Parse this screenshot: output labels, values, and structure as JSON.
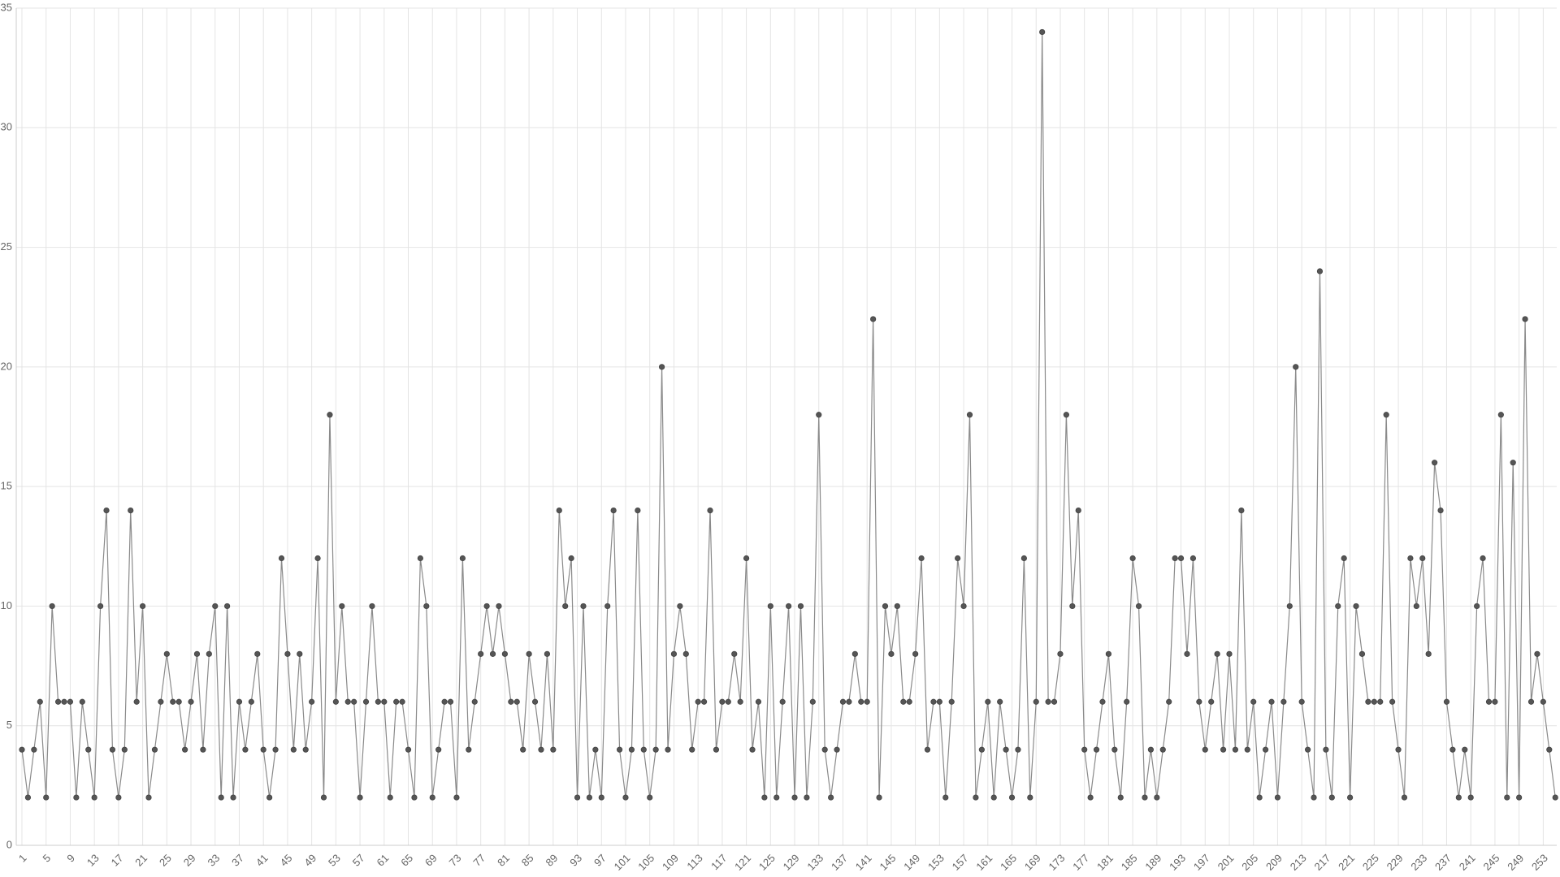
{
  "chart_data": {
    "type": "line",
    "categories": [
      "1",
      null,
      null,
      null,
      "5",
      null,
      null,
      null,
      "9",
      null,
      null,
      null,
      "13",
      null,
      null,
      null,
      "17",
      null,
      null,
      null,
      "21",
      null,
      null,
      null,
      "25",
      null,
      null,
      null,
      "29",
      null,
      null,
      null,
      "33",
      null,
      null,
      null,
      "37",
      null,
      null,
      null,
      "41",
      null,
      null,
      null,
      "45",
      null,
      null,
      null,
      "49",
      null,
      null,
      null,
      "53",
      null,
      null,
      null,
      "57",
      null,
      null,
      null,
      "61",
      null,
      null,
      null,
      "65",
      null,
      null,
      null,
      "69",
      null,
      null,
      null,
      "73",
      null,
      null,
      null,
      "77",
      null,
      null,
      null,
      "81",
      null,
      null,
      null,
      "85",
      null,
      null,
      null,
      "89",
      null,
      null,
      null,
      "93",
      null,
      null,
      null,
      "97",
      null,
      null,
      null,
      "101",
      null,
      null,
      null,
      "105",
      null,
      null,
      null,
      "109",
      null,
      null,
      null,
      "113",
      null,
      null,
      null,
      "117",
      null,
      null,
      null,
      "121",
      null,
      null,
      null,
      "125",
      null,
      null,
      null,
      "129",
      null,
      null,
      null,
      "133",
      null,
      null,
      null,
      "137",
      null,
      null,
      null,
      "141",
      null,
      null,
      null,
      "145",
      null,
      null,
      null,
      "149",
      null,
      null,
      null,
      "153",
      null,
      null,
      null,
      "157",
      null,
      null,
      null,
      "161",
      null,
      null,
      null,
      "165",
      null,
      null,
      null,
      "169",
      null,
      null,
      null,
      "173",
      null,
      null,
      null,
      "177",
      null,
      null,
      null,
      "181",
      null,
      null,
      null,
      "185",
      null,
      null,
      null,
      "189",
      null,
      null,
      null,
      "193",
      null,
      null,
      null,
      "197",
      null,
      null,
      null,
      "201",
      null,
      null,
      null,
      "205",
      null,
      null,
      null,
      "209",
      null,
      null,
      null,
      "213",
      null,
      null,
      null,
      "217",
      null,
      null,
      null,
      "221",
      null,
      null,
      null,
      "225",
      null,
      null,
      null,
      "229",
      null,
      null,
      null,
      "233",
      null,
      null,
      null,
      "237",
      null,
      null,
      null,
      "241",
      null,
      null,
      null,
      "245",
      null,
      null,
      null,
      "249",
      null,
      null,
      null,
      "253",
      null,
      null
    ],
    "values": [
      4,
      2,
      4,
      6,
      2,
      10,
      6,
      6,
      6,
      2,
      6,
      4,
      2,
      10,
      14,
      4,
      2,
      4,
      14,
      6,
      10,
      2,
      4,
      6,
      8,
      6,
      6,
      4,
      6,
      8,
      4,
      8,
      10,
      2,
      10,
      2,
      6,
      4,
      6,
      8,
      4,
      2,
      4,
      12,
      8,
      4,
      8,
      4,
      6,
      12,
      2,
      18,
      6,
      10,
      6,
      6,
      2,
      6,
      10,
      6,
      6,
      2,
      6,
      6,
      4,
      2,
      12,
      10,
      2,
      4,
      6,
      6,
      2,
      12,
      4,
      6,
      8,
      10,
      8,
      10,
      8,
      6,
      6,
      4,
      8,
      6,
      4,
      8,
      4,
      14,
      10,
      12,
      2,
      10,
      2,
      4,
      2,
      10,
      14,
      4,
      2,
      4,
      14,
      4,
      2,
      4,
      20,
      4,
      8,
      10,
      8,
      4,
      6,
      6,
      14,
      4,
      6,
      6,
      8,
      6,
      12,
      4,
      6,
      2,
      10,
      2,
      6,
      10,
      2,
      10,
      2,
      6,
      18,
      4,
      2,
      4,
      6,
      6,
      8,
      6,
      6,
      22,
      2,
      10,
      8,
      10,
      6,
      6,
      8,
      12,
      4,
      6,
      6,
      2,
      6,
      12,
      10,
      18,
      2,
      4,
      6,
      2,
      6,
      4,
      2,
      4,
      12,
      2,
      6,
      34,
      6,
      6,
      8,
      18,
      10,
      14,
      4,
      2,
      4,
      6,
      8,
      4,
      2,
      6,
      12,
      10,
      2,
      4,
      2,
      4,
      6,
      12,
      12,
      8,
      12,
      6,
      4,
      6,
      8,
      4,
      8,
      4,
      14,
      4,
      6,
      2,
      4,
      6,
      2,
      6,
      10,
      20,
      6,
      4,
      2,
      24,
      4,
      2,
      10,
      12,
      2,
      10,
      8,
      6,
      6,
      6,
      18,
      6,
      4,
      2,
      12,
      10,
      12,
      8,
      16,
      14,
      6,
      4,
      2,
      4,
      2,
      10,
      12,
      6,
      6,
      18,
      2,
      16,
      2,
      22,
      6,
      8,
      6,
      4,
      2
    ],
    "color": "#8a8a8a",
    "marker_color": "#555555",
    "ylim": [
      0,
      35
    ],
    "yticks": [
      0,
      5,
      10,
      15,
      20,
      25,
      30,
      35
    ],
    "grid": true
  }
}
